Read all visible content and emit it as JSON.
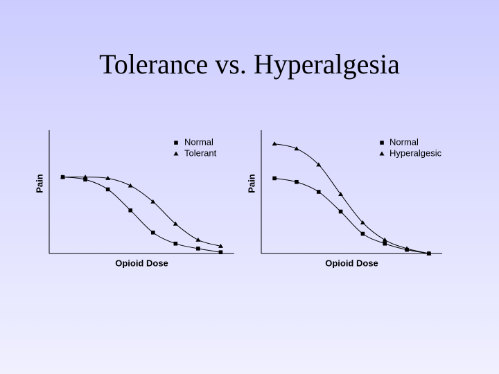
{
  "title": "Tolerance vs. Hyperalgesia",
  "chart_data": [
    {
      "type": "line",
      "xlabel": "Opioid Dose",
      "ylabel": "Pain",
      "x": [
        1,
        2,
        3,
        4,
        5,
        6,
        7,
        8
      ],
      "xlim": [
        0.4,
        8.6
      ],
      "ylim": [
        0,
        100
      ],
      "legend": "upper right",
      "series": [
        {
          "name": "Normal",
          "color": "#000000",
          "marker": "square",
          "values": [
            62,
            60,
            52,
            35,
            17,
            8,
            4,
            1
          ]
        },
        {
          "name": "Tolerant",
          "color": "#000000",
          "marker": "triangle",
          "values": [
            62,
            62,
            61,
            55,
            42,
            24,
            11,
            6
          ]
        }
      ]
    },
    {
      "type": "line",
      "xlabel": "Opioid Dose",
      "ylabel": "Pain",
      "x": [
        1,
        2,
        3,
        4,
        5,
        6,
        7,
        8
      ],
      "xlim": [
        0.4,
        8.6
      ],
      "ylim": [
        0,
        100
      ],
      "legend": "upper right",
      "series": [
        {
          "name": "Normal",
          "color": "#000000",
          "marker": "square",
          "values": [
            61,
            58,
            50,
            34,
            16,
            8,
            3,
            0
          ]
        },
        {
          "name": "Hyperalgesic",
          "color": "#000000",
          "marker": "triangle",
          "values": [
            89,
            85,
            72,
            48,
            25,
            11,
            4,
            0
          ]
        }
      ]
    }
  ]
}
